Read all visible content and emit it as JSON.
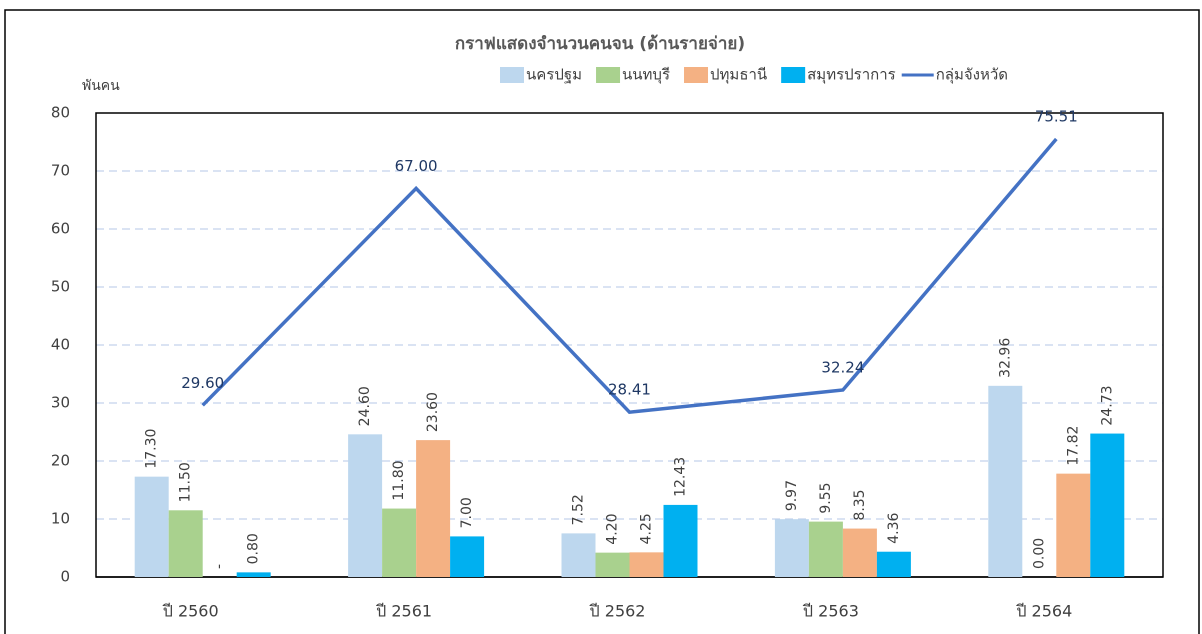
{
  "chart_data": {
    "type": "bar_line",
    "title": "กราฟแสดงจำนวนคนจน (ด้านรายจ่าย)",
    "y_label": "พันคน",
    "categories": [
      "ปี 2560",
      "ปี 2561",
      "ปี 2562",
      "ปี 2563",
      "ปี 2564"
    ],
    "series": [
      {
        "name": "นครปฐม",
        "color": "#bdd7ee",
        "type": "bar",
        "values": [
          17.3,
          24.6,
          7.52,
          9.97,
          32.96
        ],
        "value_labels": [
          "17.30",
          "24.60",
          "7.52",
          "9.97",
          "32.96"
        ]
      },
      {
        "name": "นนทบุรี",
        "color": "#a9d18e",
        "type": "bar",
        "values": [
          11.5,
          11.8,
          4.2,
          9.55,
          0
        ],
        "value_labels": [
          "11.50",
          "11.80",
          "4.20",
          "9.55",
          "0.00"
        ]
      },
      {
        "name": "ปทุมธานี",
        "color": "#f4b183",
        "type": "bar",
        "values": [
          0,
          23.6,
          4.25,
          8.35,
          17.82
        ],
        "value_labels": [
          "-",
          "23.60",
          "4.25",
          "8.35",
          "17.82"
        ]
      },
      {
        "name": "สมุทรปราการ",
        "color": "#00b0f0",
        "type": "bar",
        "values": [
          0.8,
          7,
          12.43,
          4.36,
          24.73
        ],
        "value_labels": [
          "0.80",
          "7.00",
          "12.43",
          "4.36",
          "24.73"
        ]
      },
      {
        "name": "กลุ่มจังหวัด",
        "color": "#4472c4",
        "type": "line",
        "values": [
          29.6,
          67,
          28.41,
          32.24,
          75.51
        ],
        "value_labels": [
          "29.60",
          "67.00",
          "28.41",
          "32.24",
          "75.51"
        ]
      }
    ],
    "ylim": [
      0,
      80
    ],
    "yticks": [
      0,
      10,
      20,
      30,
      40,
      50,
      60,
      70,
      80
    ],
    "grid": true,
    "legend": "top"
  }
}
